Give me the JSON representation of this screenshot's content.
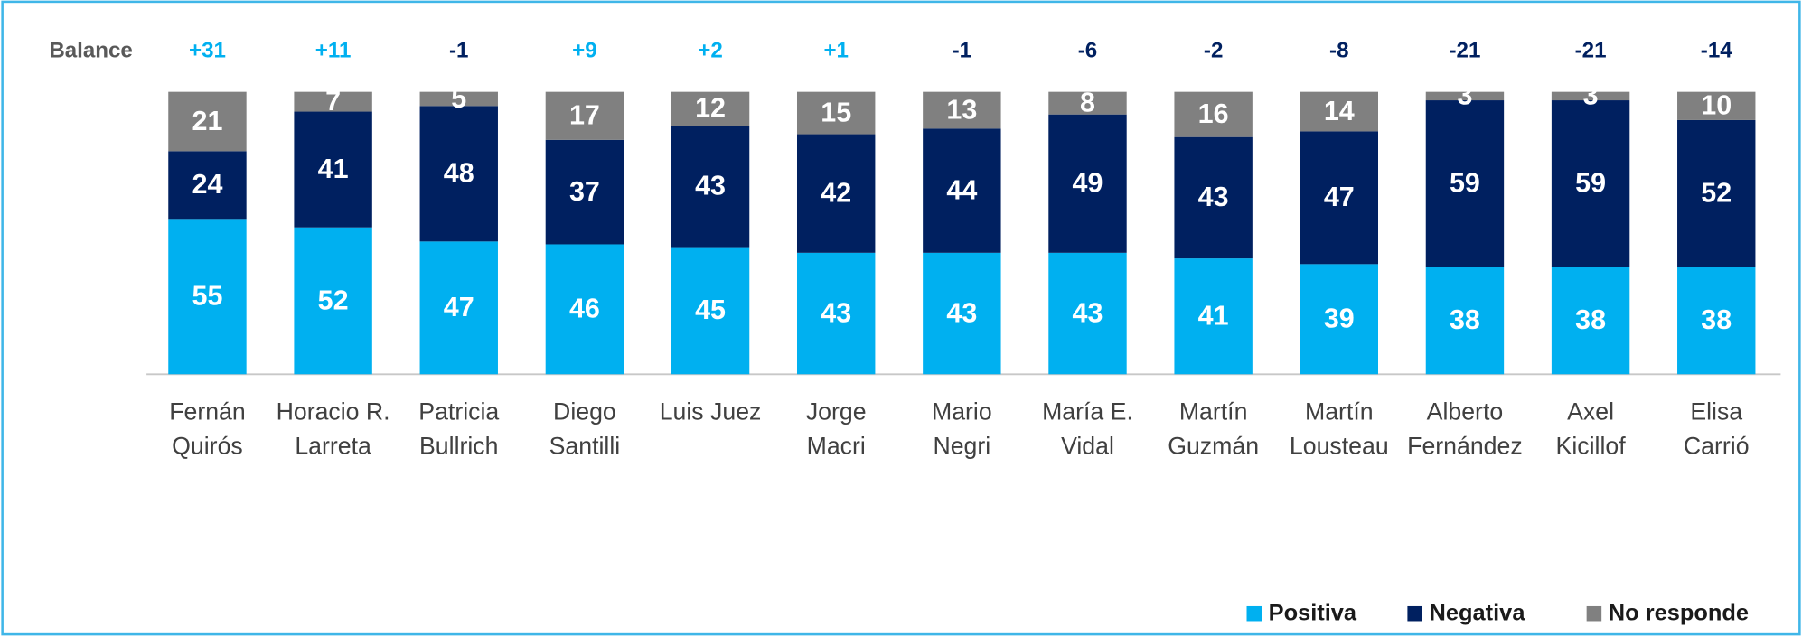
{
  "chart_data": {
    "type": "stacked_bar",
    "categories": [
      [
        "Fernán",
        "Quirós"
      ],
      [
        "Horacio R.",
        "Larreta"
      ],
      [
        "Patricia",
        "Bullrich"
      ],
      [
        "Diego",
        "Santilli"
      ],
      [
        "Luis Juez"
      ],
      [
        "Jorge",
        "Macri"
      ],
      [
        "Mario",
        "Negri"
      ],
      [
        "María E.",
        "Vidal"
      ],
      [
        "Martín",
        "Guzmán"
      ],
      [
        "Martín",
        "Lousteau"
      ],
      [
        "Alberto",
        "Fernández"
      ],
      [
        "Axel",
        "Kicillof"
      ],
      [
        "Elisa",
        "Carrió"
      ]
    ],
    "series": [
      {
        "name": "Positiva",
        "color": "#00b0f0",
        "values": [
          55,
          52,
          47,
          46,
          45,
          43,
          43,
          43,
          41,
          39,
          38,
          38,
          38
        ]
      },
      {
        "name": "Negativa",
        "color": "#002060",
        "values": [
          24,
          41,
          48,
          37,
          43,
          42,
          44,
          49,
          43,
          47,
          59,
          59,
          52
        ]
      },
      {
        "name": "No responde",
        "color": "#808080",
        "values": [
          21,
          7,
          5,
          17,
          12,
          15,
          13,
          8,
          16,
          14,
          3,
          3,
          10
        ]
      }
    ],
    "balance": {
      "label": "Balance",
      "values": [
        31,
        11,
        -1,
        9,
        2,
        1,
        -1,
        -6,
        -2,
        -8,
        -21,
        -21,
        -14
      ],
      "value_labels": [
        "+31",
        "+11",
        "-1",
        "+9",
        "+2",
        "+1",
        "-1",
        "-6",
        "-2",
        "-8",
        "-21",
        "-21",
        "-14"
      ]
    },
    "ylim": [
      0,
      100
    ],
    "legend": "bottom-right"
  }
}
